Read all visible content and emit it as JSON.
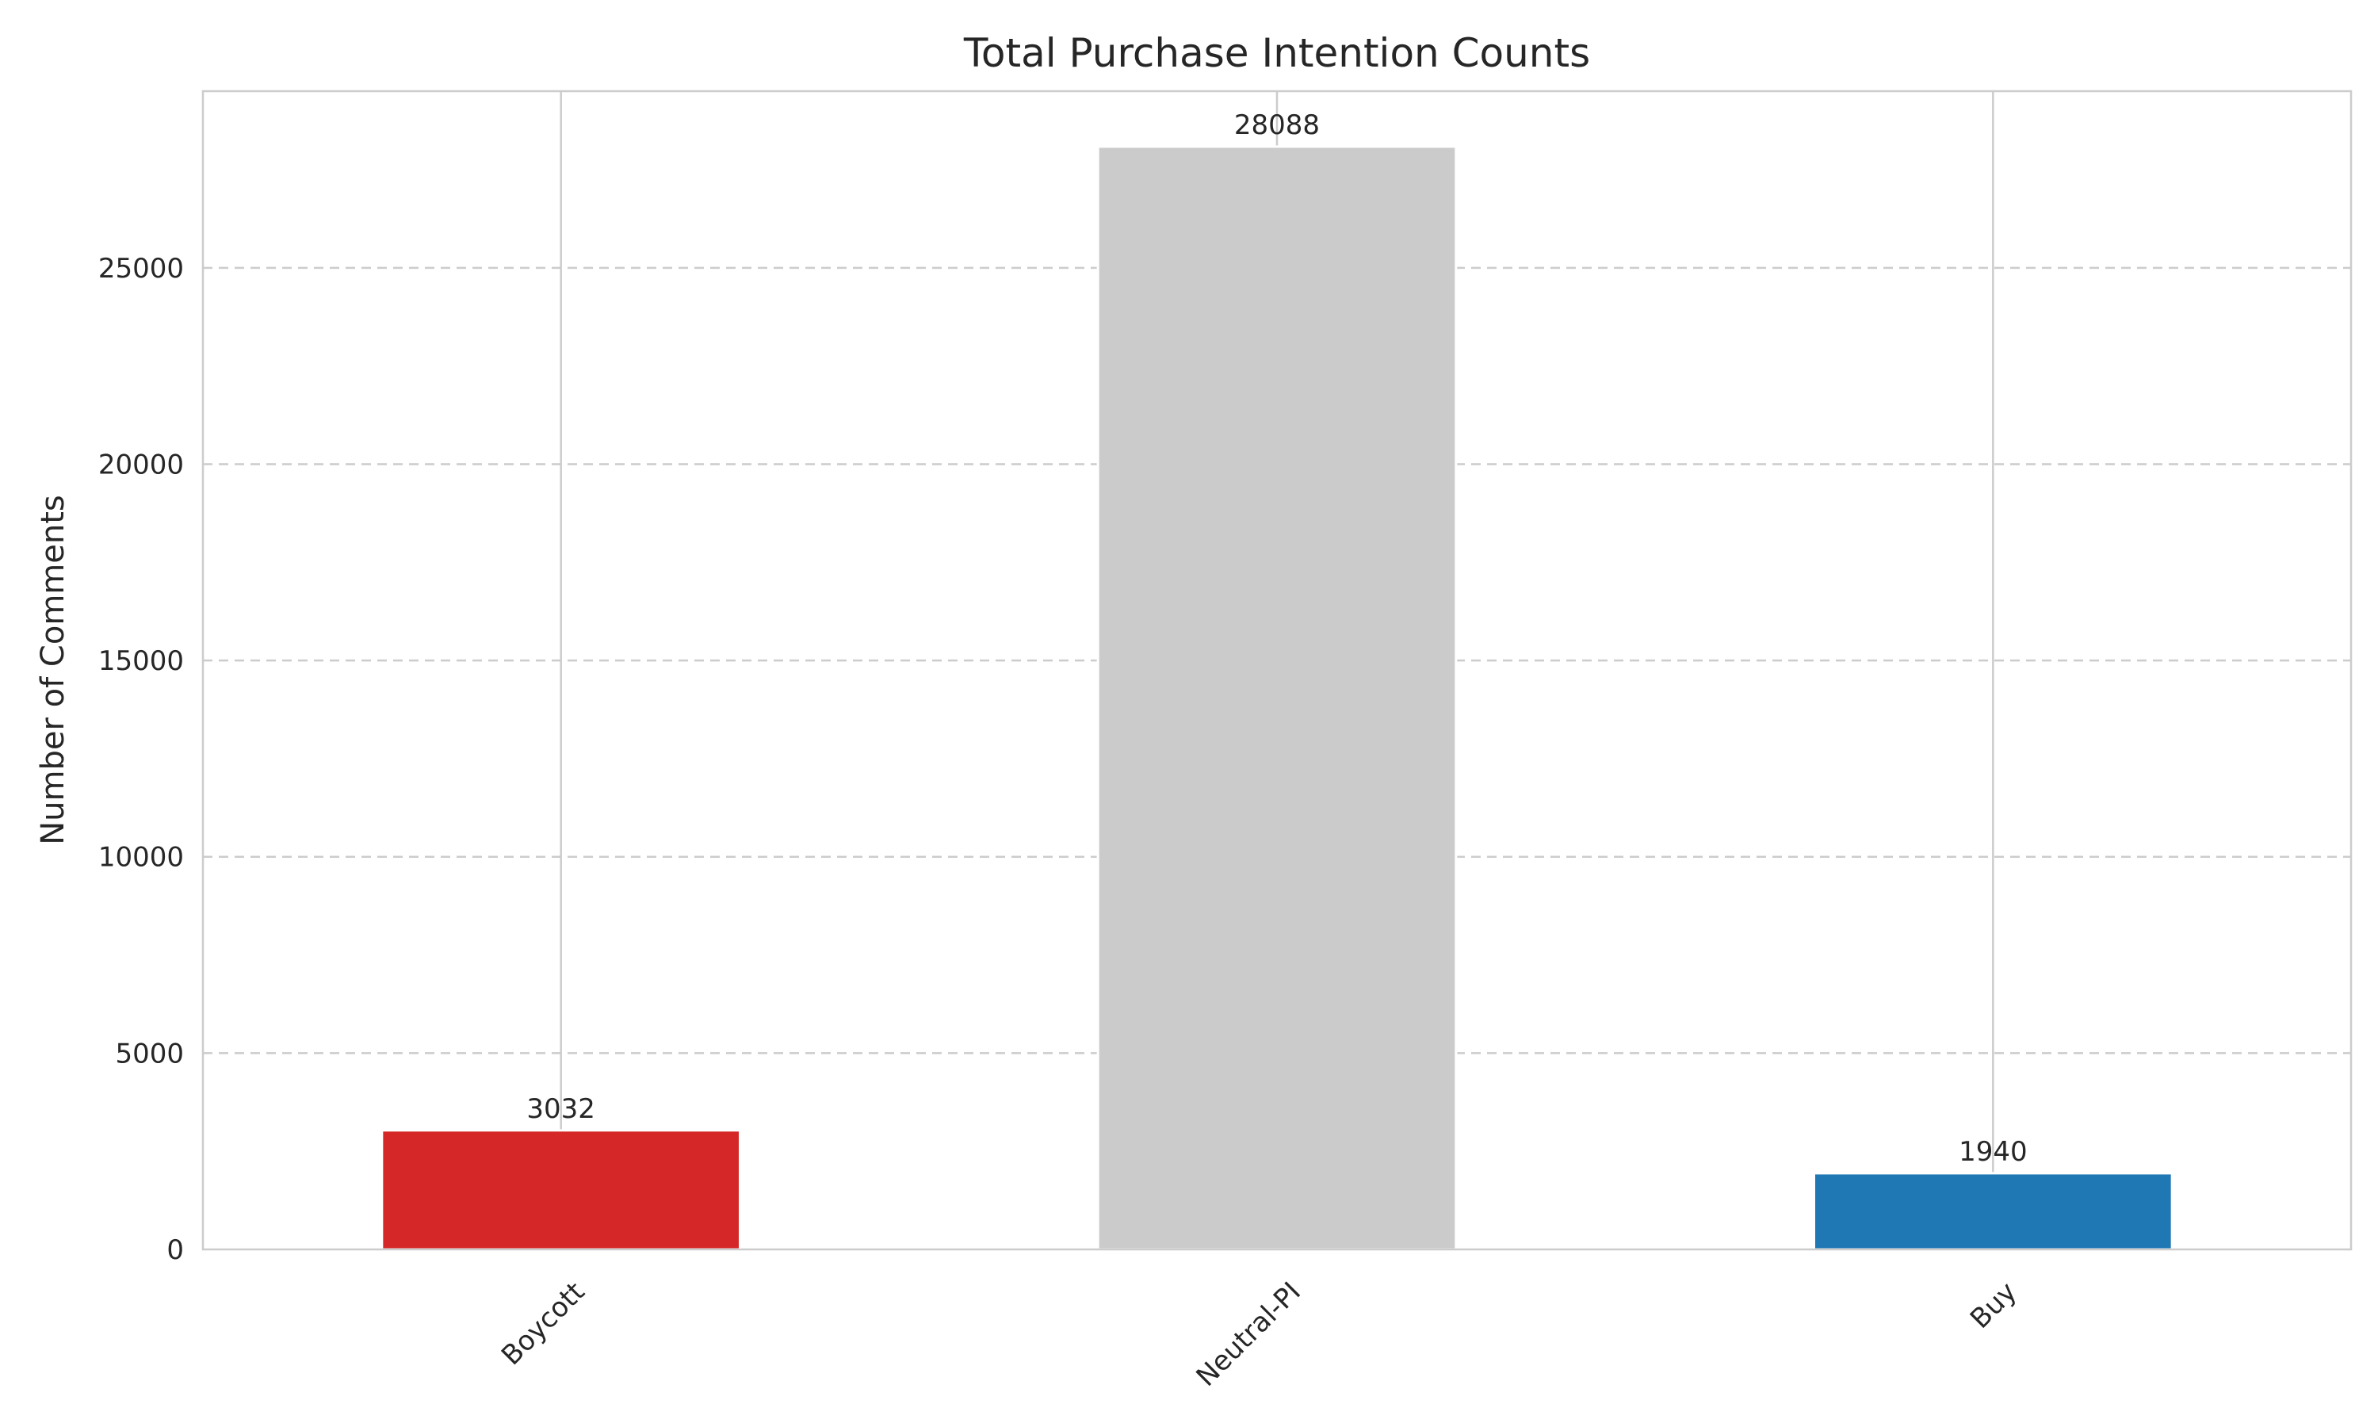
{
  "chart_data": {
    "type": "bar",
    "title": "Total Purchase Intention Counts",
    "xlabel": "",
    "ylabel": "Number of Comments",
    "categories": [
      "Boycott",
      "Neutral-PI",
      "Buy"
    ],
    "values": [
      3032,
      28088,
      1940
    ],
    "value_labels": [
      "3032",
      "28088",
      "1940"
    ],
    "colors": [
      "#d62728",
      "#cbcbcb",
      "#1f77b4"
    ],
    "ylim": [
      0,
      29500
    ],
    "yticks": [
      0,
      5000,
      10000,
      15000,
      20000,
      25000
    ],
    "ytick_labels": [
      "0",
      "5000",
      "10000",
      "15000",
      "20000",
      "25000"
    ],
    "grid": true,
    "legend": "none"
  }
}
